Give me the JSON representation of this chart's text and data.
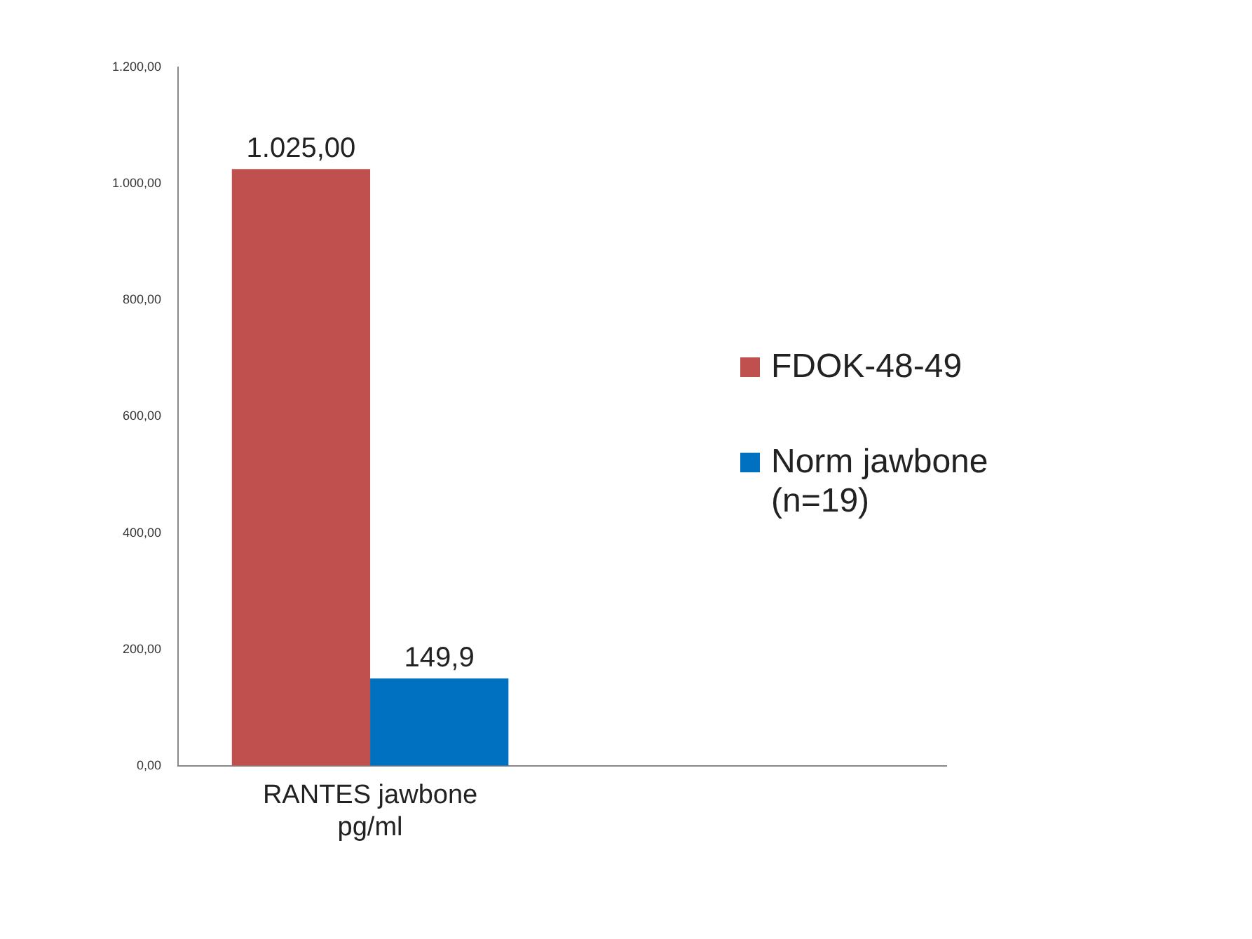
{
  "chart_data": {
    "type": "bar",
    "categories": [
      "RANTES jawbone pg/ml",
      null
    ],
    "series": [
      {
        "name": "FDOK-48-49",
        "color": "#c0504d",
        "values": [
          1025,
          null
        ],
        "value_labels": [
          "1.025,00",
          null
        ]
      },
      {
        "name": "Norm jawbone (n=19)",
        "color": "#0070c0",
        "values": [
          149.9,
          null
        ],
        "value_labels": [
          "149,9",
          null
        ]
      }
    ],
    "ylim": [
      0,
      1200
    ],
    "yticks": [
      {
        "value": 0,
        "label": "0,00"
      },
      {
        "value": 200,
        "label": "200,00"
      },
      {
        "value": 400,
        "label": "400,00"
      },
      {
        "value": 600,
        "label": "600,00"
      },
      {
        "value": 800,
        "label": "800,00"
      },
      {
        "value": 1000,
        "label": "1.000,00"
      },
      {
        "value": 1200,
        "label": "1.200,00"
      }
    ],
    "grid": false,
    "legend": "right"
  }
}
